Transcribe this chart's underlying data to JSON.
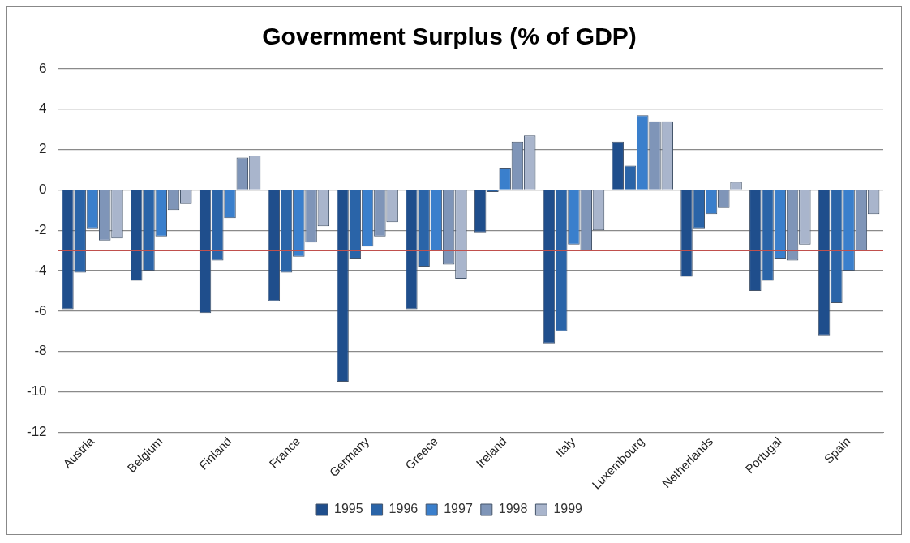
{
  "chart_data": {
    "type": "bar",
    "title": "Government Surplus (% of GDP)",
    "categories": [
      "Austria",
      "Belgium",
      "Finland",
      "France",
      "Germany",
      "Greece",
      "Ireland",
      "Italy",
      "Luxembourg",
      "Netherlands",
      "Portugal",
      "Spain"
    ],
    "series": [
      {
        "name": "1995",
        "color": "#1f4e8c",
        "values": [
          -5.9,
          -4.5,
          -6.1,
          -5.5,
          -9.5,
          -5.9,
          -2.1,
          -7.6,
          2.4,
          -4.3,
          -5.0,
          -7.2
        ]
      },
      {
        "name": "1996",
        "color": "#2a64a8",
        "values": [
          -4.1,
          -4.0,
          -3.5,
          -4.1,
          -3.4,
          -3.8,
          -0.1,
          -7.0,
          1.2,
          -1.9,
          -4.5,
          -5.6
        ]
      },
      {
        "name": "1997",
        "color": "#3a7fcc",
        "values": [
          -1.9,
          -2.3,
          -1.4,
          -3.3,
          -2.8,
          -3.0,
          1.1,
          -2.7,
          3.7,
          -1.2,
          -3.4,
          -4.0
        ]
      },
      {
        "name": "1998",
        "color": "#7f95b8",
        "values": [
          -2.5,
          -1.0,
          1.6,
          -2.6,
          -2.3,
          -3.7,
          2.4,
          -3.0,
          3.4,
          -0.9,
          -3.5,
          -3.0
        ]
      },
      {
        "name": "1999",
        "color": "#a9b5cc",
        "values": [
          -2.4,
          -0.7,
          1.7,
          -1.8,
          -1.6,
          -4.4,
          2.7,
          -2.0,
          3.4,
          0.4,
          -2.7,
          -1.2
        ]
      }
    ],
    "ylim": [
      -12,
      6
    ],
    "yticks": [
      -12,
      -10,
      -8,
      -6,
      -4,
      -2,
      0,
      2,
      4,
      6
    ],
    "ref_lines": [
      {
        "axis": "y",
        "value": -3,
        "color": "#c0504d"
      }
    ],
    "grid": "y",
    "legend": "bottom"
  }
}
